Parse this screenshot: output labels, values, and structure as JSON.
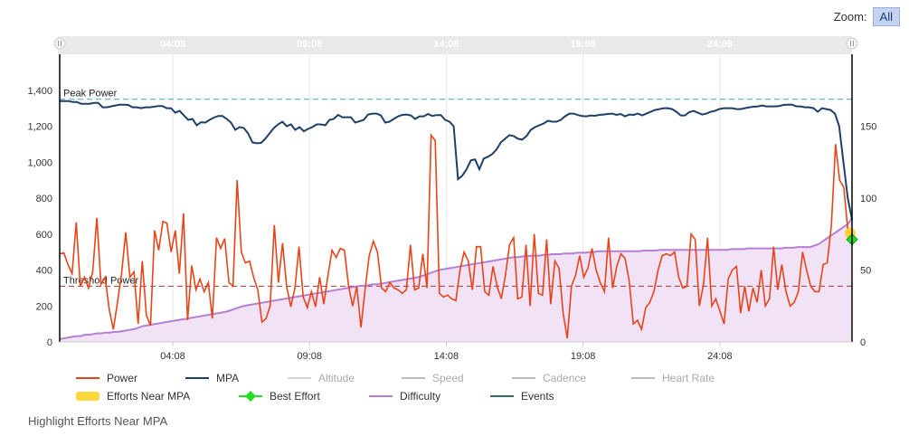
{
  "zoom": {
    "label": "Zoom:",
    "button": "All"
  },
  "footer": {
    "link_text": "Highlight Efforts Near MPA"
  },
  "colors": {
    "power": "#e8441a",
    "mpa": "#1f3f6a",
    "difficulty": "#b57fd4",
    "difficulty_fill": "#f1e2f5",
    "peak_line": "#3ba6b4",
    "threshold_line": "#a63a32",
    "best_effort": "#22dd22",
    "near_mpa": "#ffd11a",
    "dim": "#d6d6d6",
    "navigator": "#e9e9e9"
  },
  "chart_data": {
    "type": "line",
    "x_tick_labels": [
      "04:08",
      "09:08",
      "14:08",
      "19:08",
      "24:08"
    ],
    "x_tick_minutes": [
      248,
      548,
      848,
      1148,
      1448
    ],
    "x_range_minutes": [
      0,
      1738
    ],
    "y_left": {
      "ticks": [
        "0",
        "200",
        "400",
        "600",
        "800",
        "1,000",
        "1,200",
        "1,400"
      ],
      "range": [
        0,
        1600
      ]
    },
    "y_right": {
      "ticks": [
        "0",
        "50",
        "100",
        "150"
      ],
      "range": [
        0,
        200
      ]
    },
    "reference_lines": [
      {
        "label": "Peak Power",
        "value": 1350
      },
      {
        "label": "Threshold Power",
        "value": 310
      }
    ],
    "series": [
      {
        "name": "Power",
        "values": [
          490,
          495,
          430,
          380,
          665,
          310,
          360,
          300,
          390,
          690,
          320,
          360,
          180,
          70,
          220,
          380,
          610,
          360,
          390,
          100,
          450,
          150,
          90,
          620,
          510,
          670,
          660,
          500,
          620,
          380,
          715,
          120,
          425,
          290,
          350,
          280,
          330,
          130,
          580,
          520,
          575,
          330,
          310,
          900,
          500,
          440,
          450,
          360,
          290,
          110,
          130,
          200,
          650,
          330,
          550,
          310,
          195,
          300,
          530,
          250,
          190,
          280,
          195,
          360,
          210,
          370,
          510,
          470,
          520,
          510,
          310,
          200,
          310,
          80,
          290,
          480,
          560,
          500,
          300,
          280,
          330,
          300,
          290,
          270,
          290,
          540,
          290,
          300,
          490,
          300,
          1150,
          1120,
          270,
          250,
          260,
          240,
          230,
          400,
          500,
          450,
          290,
          530,
          530,
          280,
          260,
          420,
          310,
          240,
          370,
          540,
          580,
          240,
          250,
          540,
          200,
          600,
          270,
          260,
          570,
          210,
          450,
          410,
          160,
          20,
          310,
          370,
          480,
          360,
          410,
          520,
          400,
          330,
          280,
          580,
          300,
          420,
          490,
          465,
          340,
          100,
          120,
          70,
          190,
          220,
          280,
          400,
          480,
          490,
          480,
          500,
          360,
          300,
          310,
          600,
          570,
          200,
          320,
          580,
          200,
          240,
          170,
          100,
          350,
          400,
          420,
          160,
          310,
          170,
          300,
          220,
          400,
          200,
          240,
          530,
          290,
          430,
          280,
          200,
          220,
          280,
          500,
          400,
          310,
          280,
          280,
          430,
          440,
          650,
          1100,
          900,
          860,
          620,
          600
        ]
      },
      {
        "name": "MPA",
        "values": [
          1340,
          1340,
          1340,
          1335,
          1335,
          1325,
          1325,
          1325,
          1330,
          1330,
          1305,
          1305,
          1310,
          1315,
          1320,
          1320,
          1318,
          1305,
          1305,
          1300,
          1305,
          1305,
          1308,
          1312,
          1312,
          1300,
          1300,
          1275,
          1285,
          1260,
          1235,
          1240,
          1205,
          1222,
          1220,
          1235,
          1248,
          1257,
          1257,
          1240,
          1220,
          1180,
          1195,
          1190,
          1160,
          1110,
          1105,
          1107,
          1130,
          1160,
          1190,
          1210,
          1225,
          1200,
          1210,
          1180,
          1195,
          1172,
          1185,
          1195,
          1210,
          1210,
          1205,
          1235,
          1240,
          1263,
          1250,
          1250,
          1250,
          1220,
          1227,
          1235,
          1265,
          1270,
          1270,
          1260,
          1220,
          1225,
          1240,
          1255,
          1263,
          1265,
          1260,
          1240,
          1255,
          1255,
          1268,
          1257,
          1262,
          1262,
          1235,
          1225,
          1200,
          905,
          925,
          960,
          1010,
          1015,
          960,
          1020,
          1030,
          1045,
          1070,
          1110,
          1130,
          1150,
          1145,
          1130,
          1125,
          1145,
          1180,
          1195,
          1205,
          1215,
          1230,
          1225,
          1225,
          1235,
          1255,
          1270,
          1270,
          1262,
          1257,
          1255,
          1260,
          1258,
          1263,
          1265,
          1268,
          1270,
          1263,
          1268,
          1255,
          1265,
          1263,
          1270,
          1260,
          1270,
          1280,
          1290,
          1295,
          1300,
          1300,
          1295,
          1280,
          1260,
          1260,
          1278,
          1285,
          1275,
          1265,
          1270,
          1280,
          1285,
          1295,
          1300,
          1300,
          1300,
          1295,
          1295,
          1300,
          1305,
          1308,
          1310,
          1315,
          1310,
          1310,
          1310,
          1312,
          1318,
          1320,
          1320,
          1310,
          1310,
          1305,
          1305,
          1300,
          1280,
          1300,
          1295,
          1290,
          1270,
          1200,
          1000,
          800,
          680
        ]
      },
      {
        "name": "Difficulty",
        "values": [
          2,
          2.5,
          3,
          3.5,
          4,
          4,
          5,
          5,
          5.5,
          6,
          6,
          6.5,
          6.5,
          7,
          7,
          7.5,
          8,
          8.5,
          9,
          10,
          11,
          11.5,
          12,
          12.5,
          13,
          13.5,
          14,
          14.5,
          15,
          15.5,
          16,
          16.5,
          17,
          17.5,
          18,
          18.5,
          19,
          19.5,
          20,
          20.5,
          21,
          22,
          23,
          24,
          25,
          25.5,
          26,
          26.5,
          27,
          27.5,
          28,
          28.5,
          29,
          29.5,
          30,
          30.5,
          31,
          31.5,
          32,
          32.5,
          33,
          33.5,
          34,
          34.5,
          35,
          35.5,
          36,
          36.5,
          37,
          37.5,
          38,
          38.5,
          39,
          39,
          39.5,
          40,
          40,
          40.5,
          41,
          41.5,
          42,
          42.5,
          43,
          43.5,
          44,
          44.5,
          45,
          46,
          47,
          48,
          49,
          50,
          50.5,
          51,
          51.5,
          52,
          52.5,
          53,
          53.5,
          54,
          54.5,
          55,
          55.5,
          56,
          56.5,
          57,
          57.5,
          58,
          58.5,
          59,
          59,
          59.5,
          59.5,
          60,
          60,
          60,
          60.5,
          60.5,
          61,
          61,
          61,
          61.5,
          61.5,
          61.5,
          62,
          62,
          62,
          62.5,
          62.5,
          63,
          63,
          63,
          63,
          63,
          63,
          63,
          63,
          63,
          63,
          63,
          63.5,
          63.5,
          63.5,
          63.5,
          64,
          64,
          64,
          64,
          64,
          64,
          64,
          64,
          64,
          64,
          64,
          64,
          64,
          64,
          64,
          64,
          64,
          64.5,
          64.5,
          64.5,
          64.5,
          65,
          65,
          65,
          65,
          65,
          65,
          65,
          65,
          65,
          65.5,
          65.5,
          65.5,
          66,
          66,
          66,
          66,
          67,
          68,
          70,
          72,
          74,
          76,
          78,
          80,
          82,
          86
        ]
      },
      {
        "name": "Altitude",
        "values": []
      },
      {
        "name": "Speed",
        "values": []
      },
      {
        "name": "Cadence",
        "values": []
      },
      {
        "name": "Heart Rate",
        "values": []
      },
      {
        "name": "Efforts Near MPA",
        "values": [
          {
            "x": 1734,
            "y": 605
          }
        ]
      },
      {
        "name": "Best Effort",
        "values": [
          {
            "x": 1738,
            "y": 570
          }
        ]
      },
      {
        "name": "Events",
        "values": []
      }
    ]
  },
  "legend": [
    {
      "key": "power",
      "label": "Power",
      "marker": "line",
      "color": "#e8441a",
      "dim": false
    },
    {
      "key": "mpa",
      "label": "MPA",
      "marker": "line",
      "color": "#1f3f6a",
      "dim": false
    },
    {
      "key": "altitude",
      "label": "Altitude",
      "marker": "line",
      "color": "#d6d6d6",
      "dim": true
    },
    {
      "key": "speed",
      "label": "Speed",
      "marker": "line",
      "color": "#bbbbbb",
      "dim": true
    },
    {
      "key": "cadence",
      "label": "Cadence",
      "marker": "line",
      "color": "#bbbbbb",
      "dim": true
    },
    {
      "key": "heartrate",
      "label": "Heart Rate",
      "marker": "line",
      "color": "#bbbbbb",
      "dim": true
    },
    {
      "key": "near-mpa",
      "label": "Efforts Near MPA",
      "marker": "bar",
      "color": "#ffd11a",
      "dim": false
    },
    {
      "key": "best-effort",
      "label": "Best Effort",
      "marker": "diamond",
      "color": "#22dd22",
      "dim": false
    },
    {
      "key": "difficulty",
      "label": "Difficulty",
      "marker": "line",
      "color": "#b57fd4",
      "dim": false
    },
    {
      "key": "events",
      "label": "Events",
      "marker": "line",
      "color": "#2f6f6a",
      "dim": false
    }
  ]
}
